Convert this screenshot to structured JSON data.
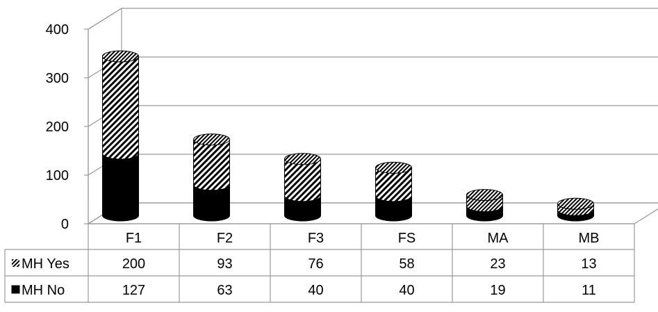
{
  "chart_data": {
    "type": "bar",
    "stacked": true,
    "style": "3d-cylinder-with-data-table",
    "categories": [
      "F1",
      "F2",
      "F3",
      "FS",
      "MA",
      "MB"
    ],
    "series": [
      {
        "name": "MH No",
        "values": [
          127,
          63,
          40,
          40,
          19,
          11
        ],
        "fill": "solid-black",
        "color": "#000000"
      },
      {
        "name": "MH Yes",
        "values": [
          200,
          93,
          76,
          58,
          23,
          13
        ],
        "fill": "diagonal-stripes",
        "color": "#000000"
      }
    ],
    "y_ticks": [
      "0",
      "100",
      "200",
      "300",
      "400"
    ],
    "ylim": [
      0,
      400
    ],
    "grid": true,
    "legend": "data-table-rows",
    "title": "",
    "xlabel": "",
    "ylabel": ""
  }
}
